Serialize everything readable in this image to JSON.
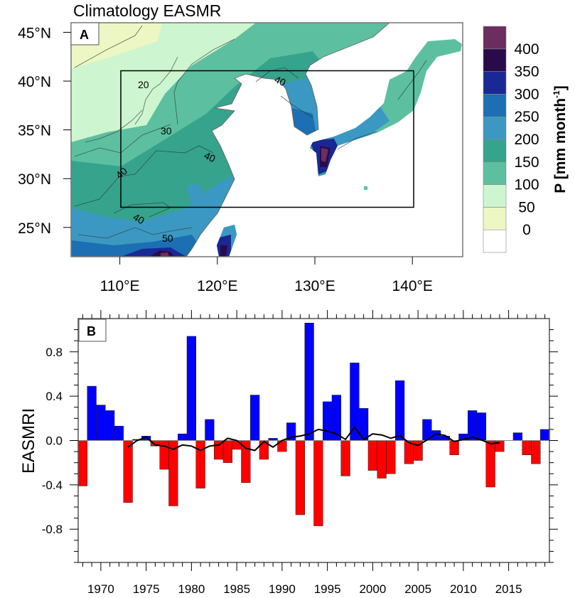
{
  "chart_data": [
    {
      "panel": "A",
      "type": "heatmap",
      "title": "Climatology EASMR",
      "lon_ticks": [
        "110°E",
        "120°E",
        "130°E",
        "140°E"
      ],
      "lat_ticks": [
        "45°N",
        "40°N",
        "35°N",
        "30°N",
        "25°N"
      ],
      "lon_range": [
        105,
        145
      ],
      "lat_range": [
        22,
        46
      ],
      "region_box": {
        "lon": [
          110,
          140
        ],
        "lat": [
          27,
          41
        ]
      },
      "colorbar": {
        "label": "P [mm month",
        "label_sup": "-1",
        "label_end": "]",
        "levels": [
          "0",
          "50",
          "100",
          "150",
          "200",
          "250",
          "300",
          "350",
          "400"
        ],
        "colors": [
          "#ffffff",
          "#ecf7c3",
          "#cdf5cf",
          "#5cc0a0",
          "#36a38c",
          "#3b98c2",
          "#1b6fb2",
          "#1a2896",
          "#2a0b4a",
          "#6b2e5e"
        ]
      },
      "contour_labels": [
        "20",
        "30",
        "40",
        "40",
        "40",
        "50",
        "40"
      ]
    },
    {
      "panel": "B",
      "type": "bar",
      "ylabel": "EASMRI",
      "ylim": [
        -1.1,
        1.1
      ],
      "yticks": [
        "-0.8",
        "-0.4",
        "0.0",
        "0.4",
        "0.8"
      ],
      "xlim": [
        1967.5,
        2019.5
      ],
      "xticks": [
        "1970",
        "1975",
        "1980",
        "1985",
        "1990",
        "1995",
        "2000",
        "2005",
        "2010",
        "2015"
      ],
      "positive_color": "#0000ff",
      "negative_color": "#ff0000",
      "years": [
        1968,
        1969,
        1970,
        1971,
        1972,
        1973,
        1974,
        1975,
        1976,
        1977,
        1978,
        1979,
        1980,
        1981,
        1982,
        1983,
        1984,
        1985,
        1986,
        1987,
        1988,
        1989,
        1990,
        1991,
        1992,
        1993,
        1994,
        1995,
        1996,
        1997,
        1998,
        1999,
        2000,
        2001,
        2002,
        2003,
        2004,
        2005,
        2006,
        2007,
        2008,
        2009,
        2010,
        2011,
        2012,
        2013,
        2014,
        2015,
        2016,
        2017,
        2018,
        2019
      ],
      "values": [
        -0.41,
        0.49,
        0.32,
        0.27,
        0.13,
        -0.56,
        0.01,
        0.04,
        -0.05,
        -0.26,
        -0.59,
        0.06,
        0.94,
        -0.43,
        0.19,
        -0.17,
        -0.2,
        -0.08,
        -0.38,
        0.41,
        -0.17,
        0.02,
        -0.1,
        0.16,
        -0.67,
        1.06,
        -0.77,
        0.35,
        0.41,
        -0.32,
        0.7,
        0.29,
        -0.27,
        -0.34,
        -0.3,
        0.54,
        -0.21,
        -0.18,
        0.19,
        0.09,
        0.04,
        -0.13,
        0.06,
        0.27,
        0.25,
        -0.42,
        -0.1,
        0.0,
        0.07,
        -0.13,
        -0.21,
        0.1
      ],
      "running_mean": {
        "years": [
          1973,
          1974,
          1975,
          1976,
          1977,
          1978,
          1979,
          1980,
          1981,
          1982,
          1983,
          1984,
          1985,
          1986,
          1987,
          1988,
          1989,
          1990,
          1991,
          1992,
          1993,
          1994,
          1995,
          1996,
          1997,
          1998,
          1999,
          2000,
          2001,
          2002,
          2003,
          2004,
          2005,
          2006,
          2007,
          2008,
          2009,
          2010,
          2011,
          2012,
          2013,
          2014
        ],
        "values": [
          -0.06,
          0.0,
          0.03,
          -0.04,
          -0.05,
          -0.08,
          -0.04,
          -0.05,
          -0.09,
          -0.05,
          -0.04,
          0.02,
          0.0,
          -0.07,
          -0.09,
          -0.01,
          -0.06,
          0.0,
          0.03,
          0.04,
          0.06,
          0.1,
          0.085,
          0.06,
          0.01,
          0.12,
          0.01,
          0.06,
          0.05,
          0.02,
          0.045,
          -0.02,
          -0.045,
          0.005,
          0.06,
          0.045,
          -0.01,
          0.01,
          0.03,
          0.005,
          -0.03,
          -0.02
        ],
        "color": "#000000"
      }
    }
  ]
}
